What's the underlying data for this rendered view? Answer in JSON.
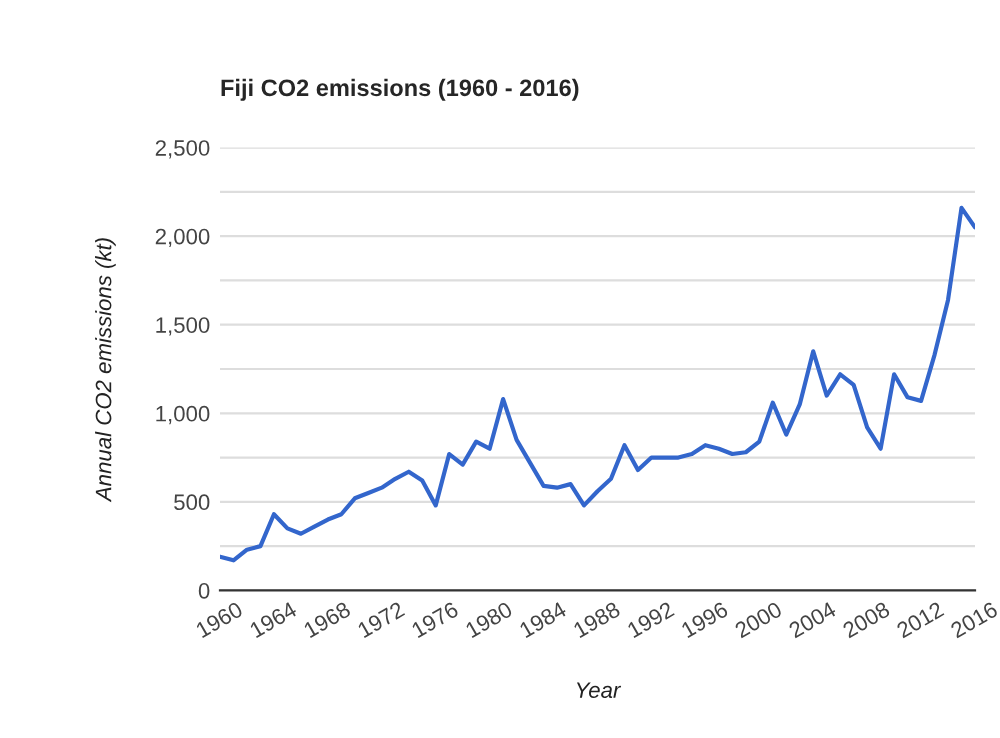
{
  "chart_data": {
    "type": "line",
    "title": "Fiji CO2 emissions (1960 - 2016)",
    "xlabel": "Year",
    "ylabel": "Annual CO2 emissions (kt)",
    "x": [
      1960,
      1961,
      1962,
      1963,
      1964,
      1965,
      1966,
      1967,
      1968,
      1969,
      1970,
      1971,
      1972,
      1973,
      1974,
      1975,
      1976,
      1977,
      1978,
      1979,
      1980,
      1981,
      1982,
      1983,
      1984,
      1985,
      1986,
      1987,
      1988,
      1989,
      1990,
      1991,
      1992,
      1993,
      1994,
      1995,
      1996,
      1997,
      1998,
      1999,
      2000,
      2001,
      2002,
      2003,
      2004,
      2005,
      2006,
      2007,
      2008,
      2009,
      2010,
      2011,
      2012,
      2013,
      2014,
      2015,
      2016
    ],
    "series": [
      {
        "color": "#3366cc",
        "values": [
          190,
          170,
          230,
          250,
          430,
          350,
          320,
          360,
          400,
          430,
          520,
          550,
          580,
          630,
          670,
          620,
          480,
          770,
          710,
          840,
          800,
          1080,
          850,
          720,
          590,
          580,
          600,
          480,
          560,
          630,
          820,
          680,
          750,
          750,
          750,
          770,
          820,
          800,
          770,
          780,
          840,
          1060,
          880,
          1050,
          1350,
          1100,
          1220,
          1160,
          920,
          800,
          1220,
          1090,
          1070,
          1330,
          1640,
          2160,
          2050
        ]
      }
    ],
    "xlim": [
      1960,
      2016
    ],
    "xticks": [
      1960,
      1964,
      1968,
      1972,
      1976,
      1980,
      1984,
      1988,
      1992,
      1996,
      2000,
      2004,
      2008,
      2012,
      2016
    ],
    "ylim": [
      0,
      2500
    ],
    "yticks": [
      {
        "value": 0,
        "label": "0"
      },
      {
        "value": 250,
        "label": null
      },
      {
        "value": 500,
        "label": "500"
      },
      {
        "value": 750,
        "label": null
      },
      {
        "value": 1000,
        "label": "1,000"
      },
      {
        "value": 1250,
        "label": null
      },
      {
        "value": 1500,
        "label": "1,500"
      },
      {
        "value": 1750,
        "label": null
      },
      {
        "value": 2000,
        "label": "2,000"
      },
      {
        "value": 2250,
        "label": null
      },
      {
        "value": 2500,
        "label": "2,500"
      }
    ],
    "grid": "y",
    "marker": "none",
    "line_style": "solid"
  }
}
